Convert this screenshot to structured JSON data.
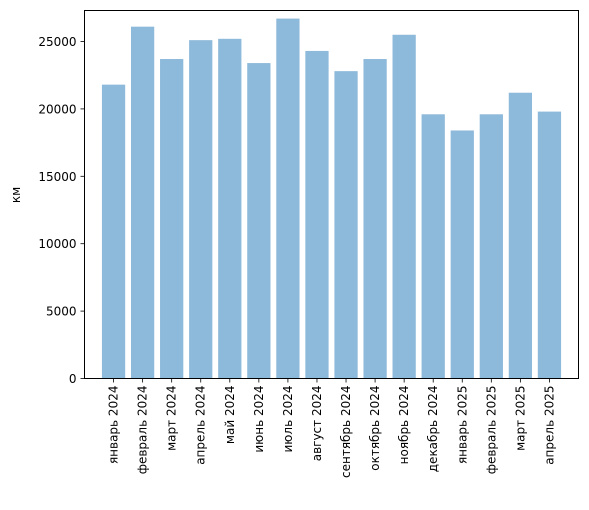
{
  "chart_data": {
    "type": "bar",
    "title": "",
    "xlabel": "",
    "ylabel": "км",
    "categories": [
      "январь 2024",
      "февраль 2024",
      "март 2024",
      "апрель 2024",
      "май 2024",
      "июнь 2024",
      "июль 2024",
      "август 2024",
      "сентябрь 2024",
      "октябрь 2024",
      "ноябрь 2024",
      "декабрь 2024",
      "январь 2025",
      "февраль 2025",
      "март 2025",
      "апрель 2025"
    ],
    "values": [
      21800,
      26100,
      23700,
      25100,
      25200,
      23400,
      26700,
      24300,
      22800,
      23700,
      25500,
      19600,
      18400,
      19600,
      21200,
      19800
    ],
    "ylim": [
      0,
      27300
    ],
    "yticks": [
      "0",
      "5000",
      "10000",
      "15000",
      "20000",
      "25000"
    ],
    "grid": false,
    "legend": "none",
    "bar_color": "#8db9da"
  }
}
